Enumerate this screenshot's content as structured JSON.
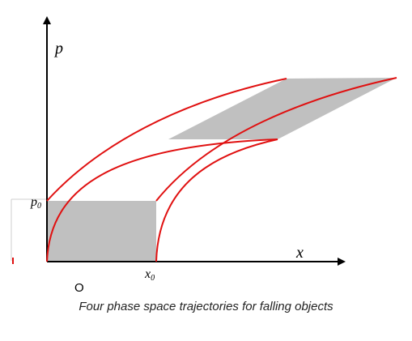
{
  "diagram": {
    "axis_x_label": "x",
    "axis_y_label": "p",
    "p0_label": "p",
    "p0_subscript": "0",
    "x0_label": "x",
    "x0_subscript": "0",
    "origin_label": "O",
    "caption": "Four phase space trajectories for falling objects",
    "colors": {
      "trajectory": "#e01010",
      "region_fill": "#c0c0c0",
      "axis": "#000000",
      "guide": "#bfbfbf"
    }
  }
}
